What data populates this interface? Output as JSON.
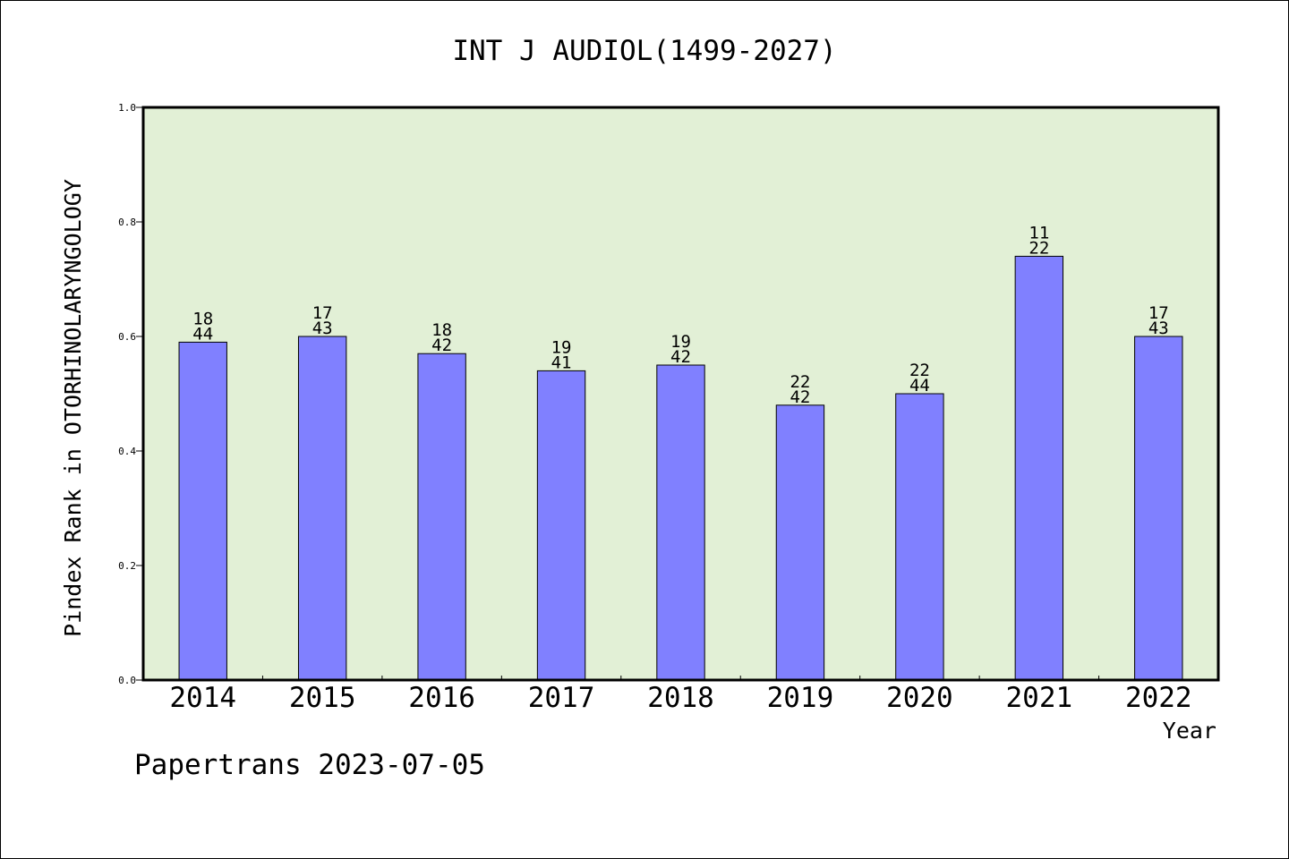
{
  "chart_data": {
    "type": "bar",
    "title": "INT J AUDIOL(1499-2027)",
    "xlabel": "Year",
    "ylabel": "Pindex Rank in OTORHINOLARYNGOLOGY",
    "ylim": [
      0.0,
      1.0
    ],
    "yticks": [
      "0.0",
      "0.2",
      "0.4",
      "0.6",
      "0.8",
      "1.0"
    ],
    "categories": [
      "2014",
      "2015",
      "2016",
      "2017",
      "2018",
      "2019",
      "2020",
      "2021",
      "2022"
    ],
    "values": [
      0.59,
      0.6,
      0.57,
      0.54,
      0.55,
      0.48,
      0.5,
      0.74,
      0.6
    ],
    "rank": [
      "18",
      "17",
      "18",
      "19",
      "19",
      "22",
      "22",
      "11",
      "17"
    ],
    "total": [
      "44",
      "43",
      "42",
      "41",
      "42",
      "42",
      "44",
      "22",
      "43"
    ],
    "grid": false,
    "colors": {
      "bar": "#8080ff",
      "plot_bg": "#e2f0d6",
      "bar_edge": "#000000"
    }
  },
  "footer": "Papertrans 2023-07-05"
}
